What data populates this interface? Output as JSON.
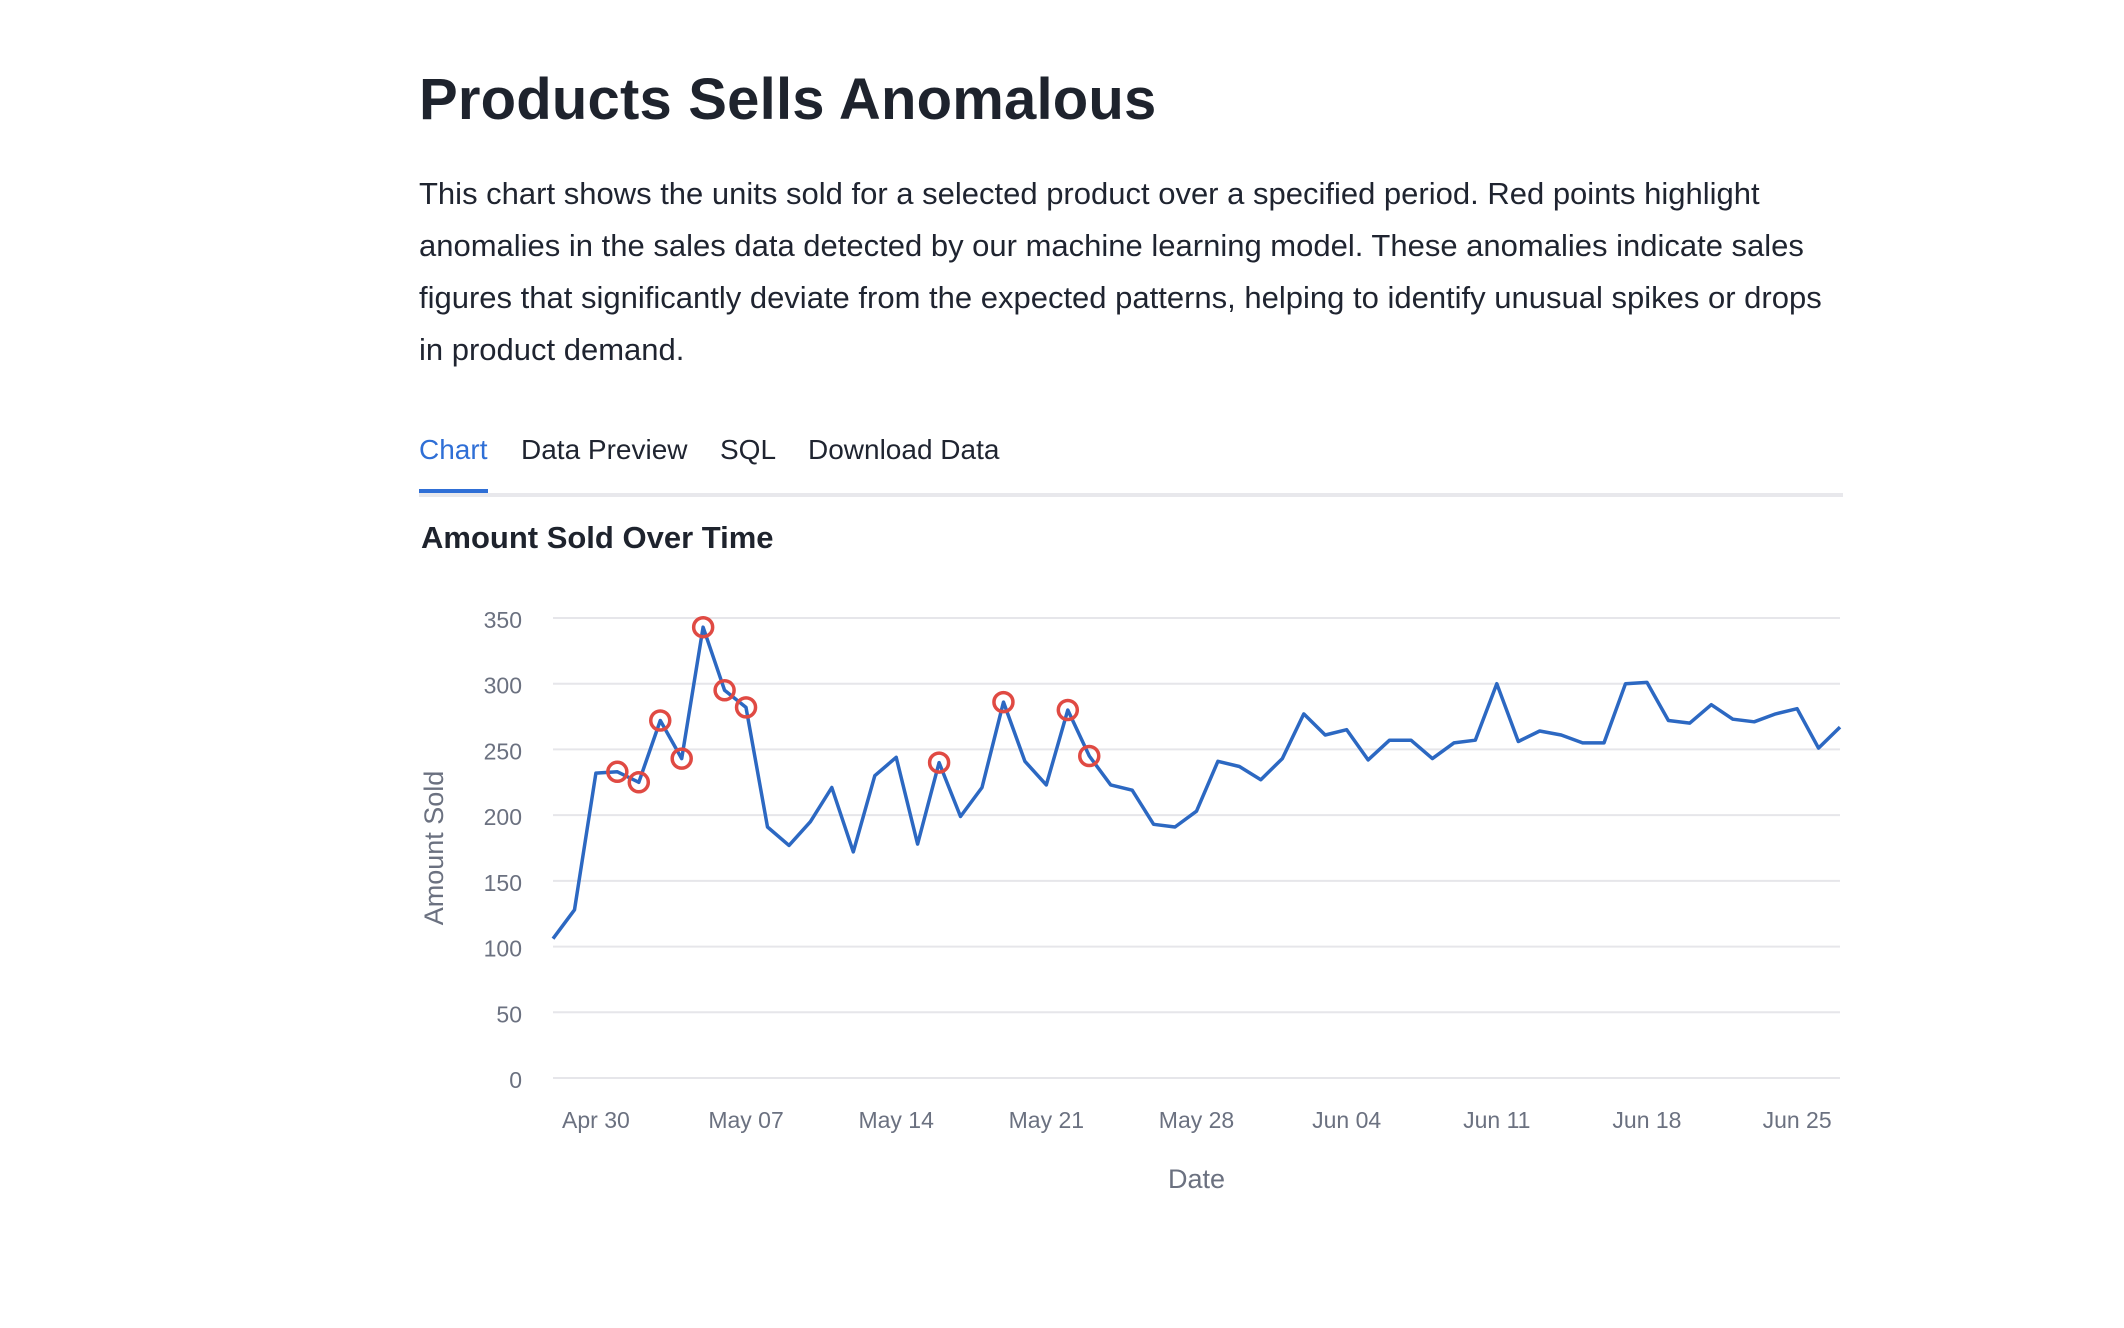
{
  "header": {
    "title": "Products Sells Anomalous",
    "description": "This chart shows the units sold for a selected product over a specified period. Red points highlight anomalies in the sales data detected by our machine learning model. These anomalies indicate sales figures that significantly deviate from the expected patterns, helping to identify unusual spikes or drops in product demand."
  },
  "tabs": [
    {
      "label": "Chart",
      "active": true
    },
    {
      "label": "Data Preview",
      "active": false
    },
    {
      "label": "SQL",
      "active": false
    },
    {
      "label": "Download Data",
      "active": false
    }
  ],
  "colors": {
    "accent": "#2f6fd6",
    "line": "#2c68c2",
    "anomaly": "#e04a43",
    "grid": "#e6e6ea",
    "axis_text": "#6b7180"
  },
  "chart_data": {
    "type": "line",
    "title": "Amount Sold Over Time",
    "xlabel": "Date",
    "ylabel": "Amount Sold",
    "ylim": [
      0,
      350
    ],
    "yticks": [
      0,
      50,
      100,
      150,
      200,
      250,
      300,
      350
    ],
    "x_ticks": [
      "Apr 30",
      "May 07",
      "May 14",
      "May 21",
      "May 28",
      "Jun 04",
      "Jun 11",
      "Jun 18",
      "Jun 25"
    ],
    "grid": true,
    "x_start": "2024-04-28",
    "series": [
      {
        "values": [
          106,
          128,
          232,
          233,
          225,
          272,
          243,
          343,
          295,
          282,
          191,
          177,
          195,
          221,
          172,
          230,
          244,
          178,
          240,
          199,
          221,
          286,
          241,
          223,
          280,
          245,
          223,
          219,
          193,
          191,
          203,
          241,
          237,
          227,
          243,
          277,
          261,
          265,
          242,
          257,
          257,
          243,
          255,
          257,
          300,
          256,
          264,
          261,
          255,
          255,
          300,
          301,
          272,
          270,
          284,
          273,
          271,
          277,
          281,
          251,
          267
        ]
      }
    ],
    "anomalies": [
      {
        "index": 3,
        "value": 233
      },
      {
        "index": 4,
        "value": 225
      },
      {
        "index": 5,
        "value": 272
      },
      {
        "index": 6,
        "value": 243
      },
      {
        "index": 7,
        "value": 343
      },
      {
        "index": 8,
        "value": 295
      },
      {
        "index": 9,
        "value": 282
      },
      {
        "index": 18,
        "value": 240
      },
      {
        "index": 21,
        "value": 286
      },
      {
        "index": 24,
        "value": 280
      },
      {
        "index": 25,
        "value": 245
      }
    ]
  }
}
